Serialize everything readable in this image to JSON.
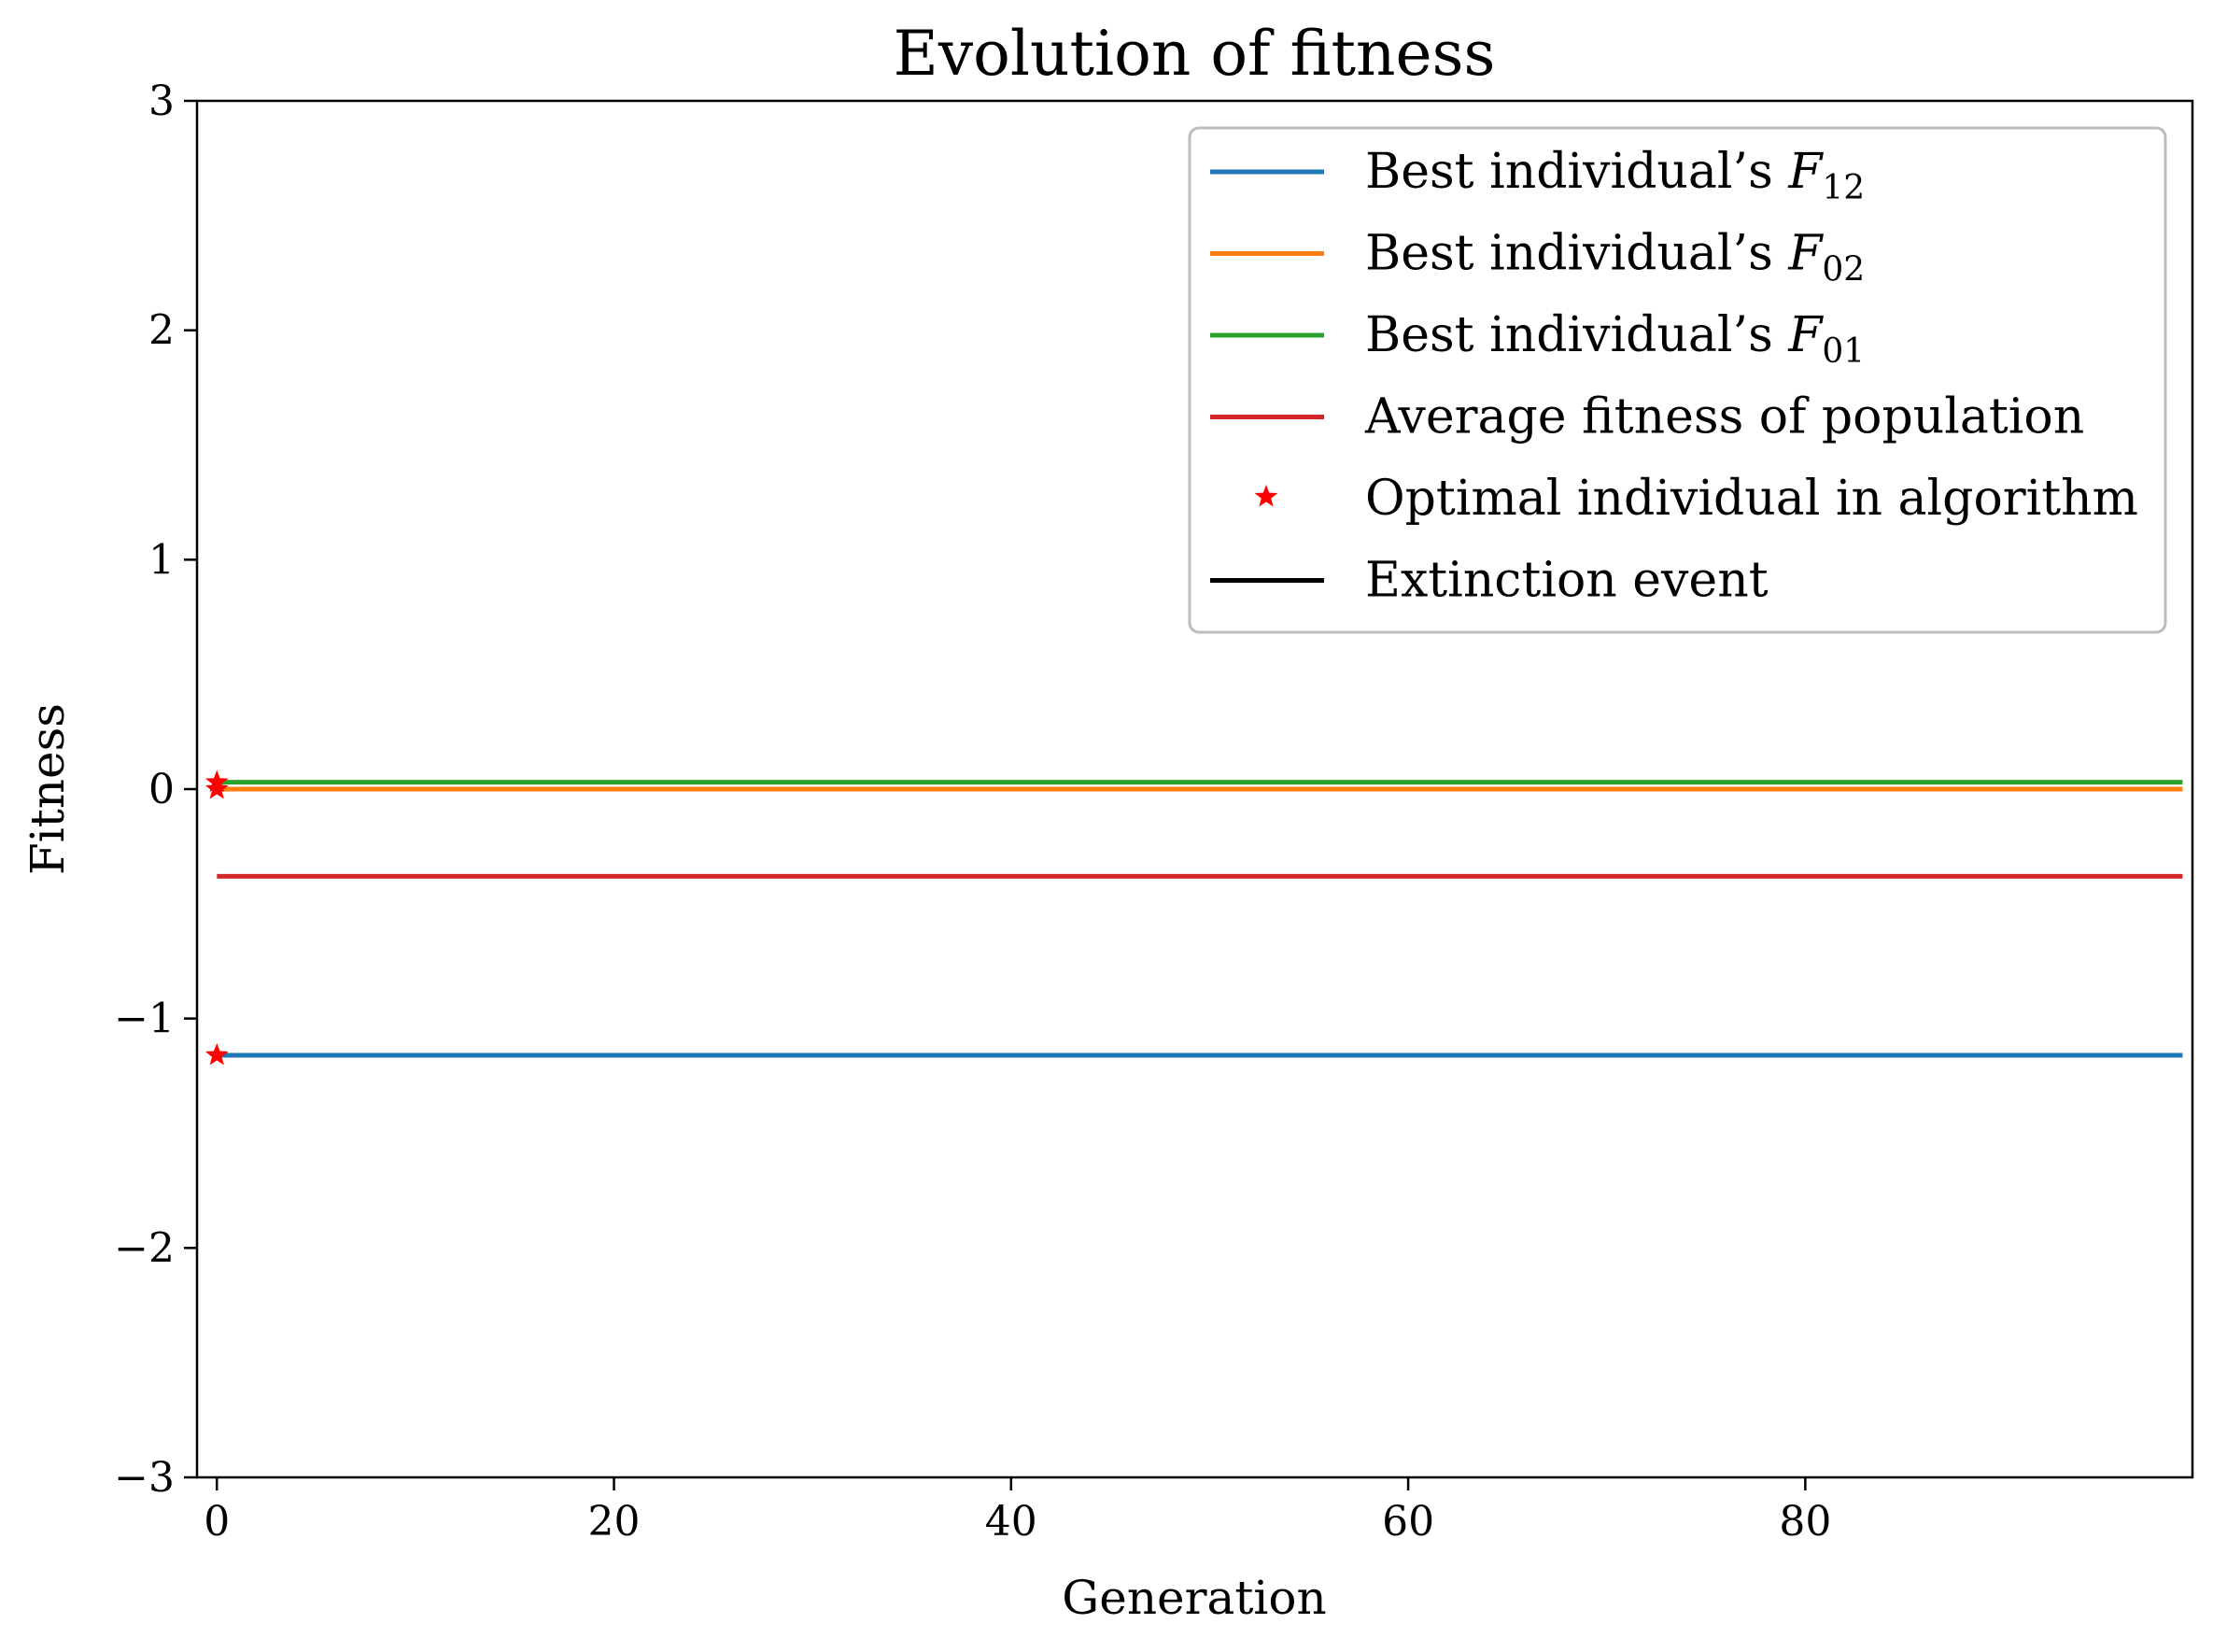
{
  "chart_data": {
    "type": "line",
    "title": "Evolution of fitness",
    "xlabel": "Generation",
    "ylabel": "Fitness",
    "xlim": [
      -1,
      99.5
    ],
    "ylim": [
      -3,
      3
    ],
    "xticks": [
      0,
      20,
      40,
      60,
      80
    ],
    "xtick_labels": [
      "0",
      "20",
      "40",
      "60",
      "80"
    ],
    "yticks": [
      -3,
      -2,
      -1,
      0,
      1,
      2,
      3
    ],
    "ytick_labels": [
      "−3",
      "−2",
      "−1",
      "0",
      "1",
      "2",
      "3"
    ],
    "grid": false,
    "legend_position": "top-right",
    "series": [
      {
        "name": "Best individual’s F12",
        "label_text": "Best individual’s ",
        "label_symbol": "F",
        "label_subscript": "12",
        "color": "#1f77b4",
        "style": "line",
        "x": [
          0,
          99
        ],
        "y": [
          -1.16,
          -1.16
        ]
      },
      {
        "name": "Best individual’s F02",
        "label_text": "Best individual’s ",
        "label_symbol": "F",
        "label_subscript": "02",
        "color": "#ff7f0e",
        "style": "line",
        "x": [
          0,
          99
        ],
        "y": [
          0.0,
          0.0
        ]
      },
      {
        "name": "Best individual’s F01",
        "label_text": "Best individual’s ",
        "label_symbol": "F",
        "label_subscript": "01",
        "color": "#2ca02c",
        "style": "line",
        "x": [
          0,
          99
        ],
        "y": [
          0.03,
          0.03
        ]
      },
      {
        "name": "Average fitness of population",
        "label_text": "Average fitness of population",
        "color": "#d62728",
        "style": "line",
        "x": [
          0,
          99
        ],
        "y": [
          -0.38,
          -0.38
        ]
      },
      {
        "name": "Optimal individual in algorithm",
        "label_text": "Optimal individual in algorithm",
        "color": "#ff0000",
        "style": "marker",
        "x": [
          0,
          0,
          0
        ],
        "y": [
          -1.16,
          0.0,
          0.03
        ]
      },
      {
        "name": "Extinction event",
        "label_text": "Extinction event",
        "color": "#000000",
        "style": "line",
        "x": [],
        "y": []
      }
    ]
  }
}
